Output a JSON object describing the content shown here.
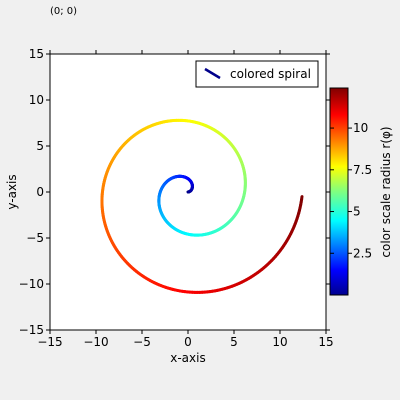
{
  "coordinate_readout": "(0; 0)",
  "chart_data": {
    "type": "line",
    "title": "",
    "xlabel": "x-axis",
    "ylabel": "y-axis",
    "xlim": [
      -15,
      15
    ],
    "ylim": [
      -15,
      15
    ],
    "xticks": [
      -15,
      -10,
      -5,
      0,
      5,
      10,
      15
    ],
    "yticks": [
      -15,
      -10,
      -5,
      0,
      5,
      10,
      15
    ],
    "xtick_labels": [
      "−15",
      "−10",
      "−5",
      "0",
      "5",
      "10",
      "15"
    ],
    "ytick_labels": [
      "−15",
      "−10",
      "−5",
      "0",
      "5",
      "10",
      "15"
    ],
    "grid": false,
    "legend_position": "top-right",
    "series": [
      {
        "name": "colored spiral",
        "equation": "r(φ) = φ (Archimedean spiral)",
        "phi_range": [
          0,
          12.4
        ],
        "r_range": [
          0,
          12.4
        ],
        "legend_color": "#00008b",
        "start_point": [
          0,
          0
        ],
        "end_point": [
          12.4,
          -0.5
        ]
      }
    ],
    "colorbar": {
      "label": "color scale radius r(φ)",
      "range": [
        0,
        12.4
      ],
      "ticks": [
        2.5,
        5,
        7.5,
        10
      ],
      "tick_labels": [
        "2.5",
        "5",
        "7.5",
        "10"
      ],
      "colormap": "jet"
    }
  }
}
